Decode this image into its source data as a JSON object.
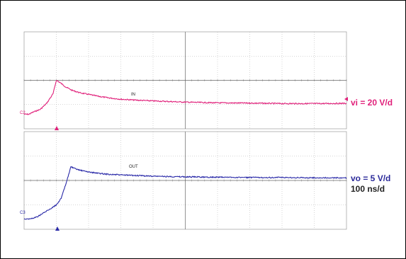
{
  "colors": {
    "ch2": "#e0207a",
    "ch3": "#2a2aa8",
    "grid": "#9a9a9a",
    "text": "#222222"
  },
  "labels": {
    "vi": "vi = 20 V/d",
    "vo": "vo = 5 V/d",
    "time": "100 ns/d"
  },
  "chart_data": [
    {
      "type": "line",
      "title": "",
      "channel": "C2",
      "trace_label": "IN",
      "series": [
        {
          "name": "IN",
          "x": [
            0,
            0.15,
            0.3,
            0.5,
            0.7,
            0.9,
            1.0,
            1.1,
            1.3,
            1.5,
            1.75,
            2.0,
            2.3,
            2.6,
            3.0,
            3.5,
            4.0,
            5.0,
            6.0,
            7.0,
            8.0,
            9.0,
            10.0
          ],
          "y": [
            -0.4,
            -0.4,
            -0.3,
            -0.2,
            0.05,
            0.45,
            1.0,
            0.92,
            0.72,
            0.58,
            0.48,
            0.42,
            0.34,
            0.28,
            0.22,
            0.18,
            0.15,
            0.1,
            0.07,
            0.06,
            0.04,
            0.04,
            0.05
          ]
        }
      ],
      "xlim": [
        0,
        10
      ],
      "ylim": [
        -1,
        3
      ],
      "grid": true
    },
    {
      "type": "line",
      "title": "",
      "channel": "C3",
      "trace_label": "OUT",
      "series": [
        {
          "name": "OUT",
          "x": [
            0,
            0.2,
            0.4,
            0.6,
            0.8,
            1.0,
            1.15,
            1.3,
            1.45,
            1.6,
            1.8,
            2.0,
            2.3,
            2.6,
            3.0,
            3.5,
            4.0,
            5.0,
            6.0,
            7.0,
            8.0,
            9.0,
            10.0
          ],
          "y": [
            -1.18,
            -1.18,
            -1.12,
            -1.0,
            -0.88,
            -0.75,
            -0.55,
            -0.1,
            0.42,
            0.35,
            0.3,
            0.26,
            0.22,
            0.19,
            0.17,
            0.15,
            0.13,
            0.11,
            0.1,
            0.09,
            0.09,
            0.08,
            0.08
          ]
        }
      ],
      "xlim": [
        0,
        10
      ],
      "ylim": [
        -1.5,
        1.5
      ],
      "grid": true
    }
  ]
}
